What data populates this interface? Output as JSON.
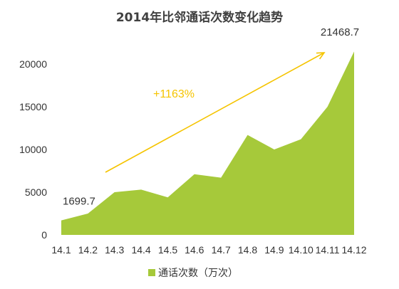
{
  "chart_data": {
    "type": "area",
    "title": "2014年比邻通话次数变化趋势",
    "categories": [
      "14.1",
      "14.2",
      "14.3",
      "14.4",
      "14.5",
      "14.6",
      "14.7",
      "14.8",
      "14.9",
      "14.10",
      "14.11",
      "14.12"
    ],
    "series": [
      {
        "name": "通话次数（万次）",
        "values": [
          1699.7,
          2500,
          5000,
          5300,
          4400,
          7100,
          6700,
          11700,
          10000,
          11200,
          15000,
          21468.7
        ],
        "color": "#a6c93a"
      }
    ],
    "ylim": [
      0,
      22000
    ],
    "yticks": [
      0,
      5000,
      10000,
      15000,
      20000
    ],
    "grid": false,
    "legend_position": "bottom",
    "data_labels": [
      {
        "category": "14.1",
        "text": "1699.7"
      },
      {
        "category": "14.12",
        "text": "21468.7"
      }
    ],
    "annotations": [
      {
        "text": "+1163%",
        "type": "trend-arrow",
        "color": "#f5c400"
      }
    ]
  }
}
